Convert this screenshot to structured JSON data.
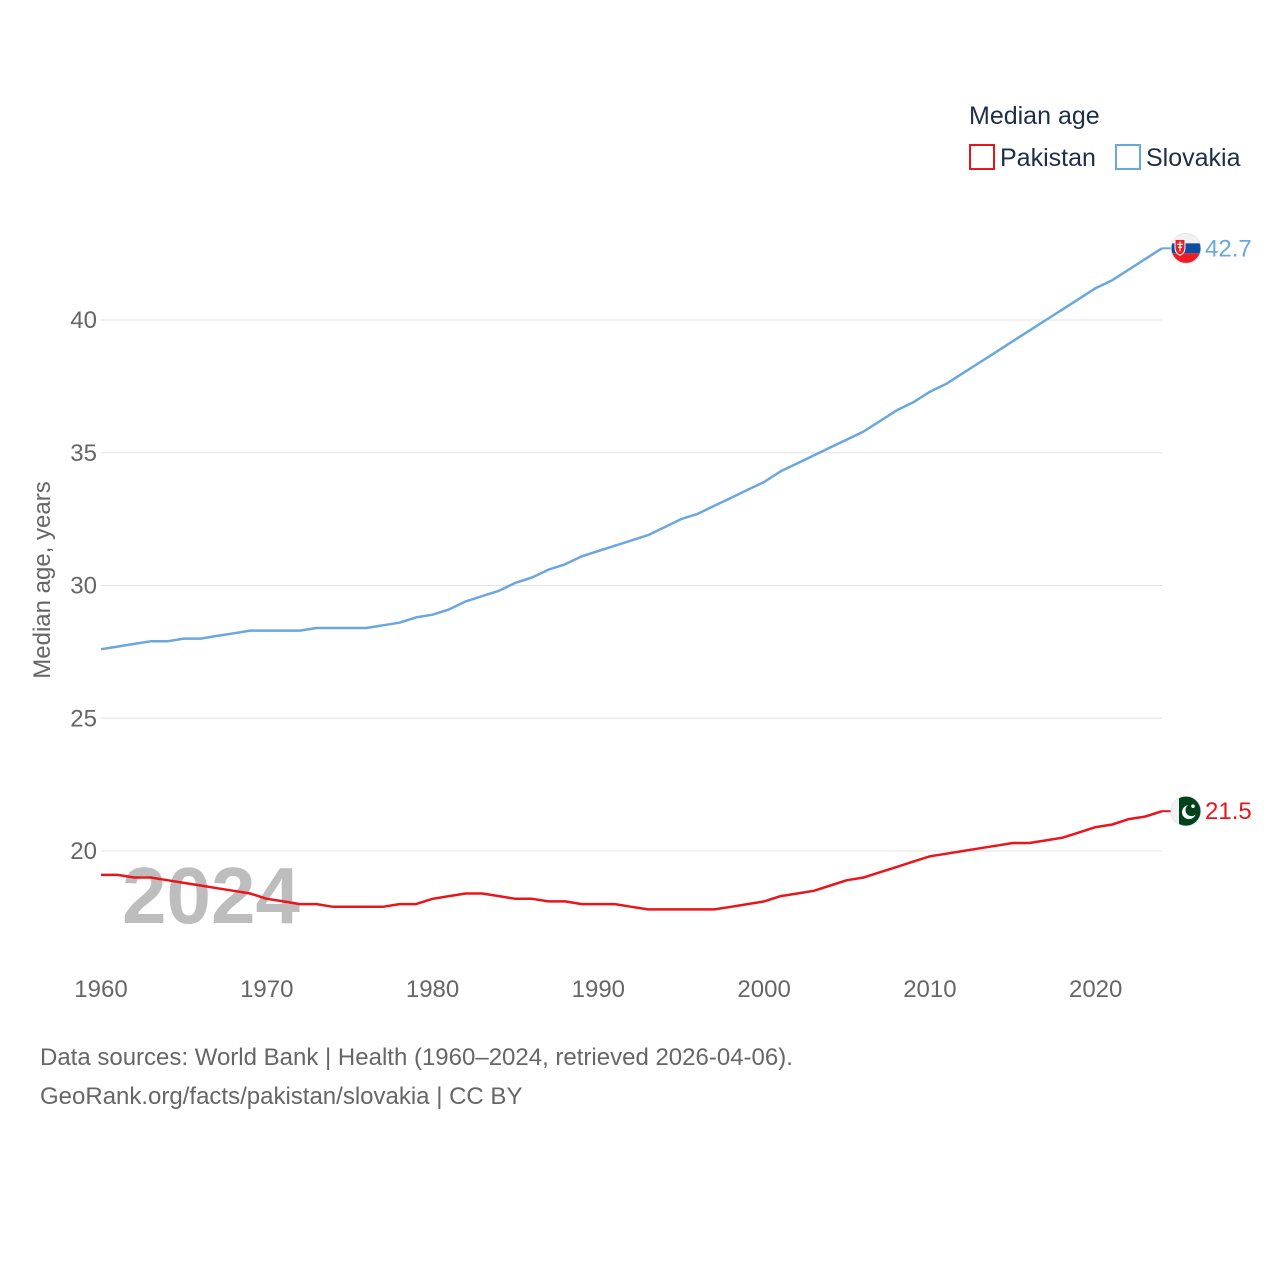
{
  "chart_data": {
    "type": "line",
    "legend_title": "Median age",
    "ylabel": "Median age, years",
    "xlabel": "",
    "xlim": [
      1960,
      2024
    ],
    "ylim": [
      16,
      44
    ],
    "x_ticks": [
      1960,
      1970,
      1980,
      1990,
      2000,
      2010,
      2020
    ],
    "y_ticks": [
      20,
      25,
      30,
      35,
      40
    ],
    "current_year_label": "2024",
    "legend_placement": "top-right",
    "x": [
      1960,
      1961,
      1962,
      1963,
      1964,
      1965,
      1966,
      1967,
      1968,
      1969,
      1970,
      1971,
      1972,
      1973,
      1974,
      1975,
      1976,
      1977,
      1978,
      1979,
      1980,
      1981,
      1982,
      1983,
      1984,
      1985,
      1986,
      1987,
      1988,
      1989,
      1990,
      1991,
      1992,
      1993,
      1994,
      1995,
      1996,
      1997,
      1998,
      1999,
      2000,
      2001,
      2002,
      2003,
      2004,
      2005,
      2006,
      2007,
      2008,
      2009,
      2010,
      2011,
      2012,
      2013,
      2014,
      2015,
      2016,
      2017,
      2018,
      2019,
      2020,
      2021,
      2022,
      2023,
      2024
    ],
    "series": [
      {
        "name": "Pakistan",
        "color": "#e8161b",
        "end_label": "21.5",
        "flag": "pakistan-flag",
        "values": [
          19.1,
          19.1,
          19.0,
          19.0,
          18.9,
          18.8,
          18.7,
          18.6,
          18.5,
          18.4,
          18.2,
          18.1,
          18.0,
          18.0,
          17.9,
          17.9,
          17.9,
          17.9,
          18.0,
          18.0,
          18.2,
          18.3,
          18.4,
          18.4,
          18.3,
          18.2,
          18.2,
          18.1,
          18.1,
          18.0,
          18.0,
          18.0,
          17.9,
          17.8,
          17.8,
          17.8,
          17.8,
          17.8,
          17.9,
          18.0,
          18.1,
          18.3,
          18.4,
          18.5,
          18.7,
          18.9,
          19.0,
          19.2,
          19.4,
          19.6,
          19.8,
          19.9,
          20.0,
          20.1,
          20.2,
          20.3,
          20.3,
          20.4,
          20.5,
          20.7,
          20.9,
          21.0,
          21.2,
          21.3,
          21.5
        ]
      },
      {
        "name": "Slovakia",
        "color": "#6aa7df",
        "end_label": "42.7",
        "flag": "slovakia-flag",
        "values": [
          27.6,
          27.7,
          27.8,
          27.9,
          27.9,
          28.0,
          28.0,
          28.1,
          28.2,
          28.3,
          28.3,
          28.3,
          28.3,
          28.4,
          28.4,
          28.4,
          28.4,
          28.5,
          28.6,
          28.8,
          28.9,
          29.1,
          29.4,
          29.6,
          29.8,
          30.1,
          30.3,
          30.6,
          30.8,
          31.1,
          31.3,
          31.5,
          31.7,
          31.9,
          32.2,
          32.5,
          32.7,
          33.0,
          33.3,
          33.6,
          33.9,
          34.3,
          34.6,
          34.9,
          35.2,
          35.5,
          35.8,
          36.2,
          36.6,
          36.9,
          37.3,
          37.6,
          38.0,
          38.4,
          38.8,
          39.2,
          39.6,
          40.0,
          40.4,
          40.8,
          41.2,
          41.5,
          41.9,
          42.3,
          42.7
        ]
      }
    ]
  },
  "footer": {
    "line1": "Data sources: World Bank | Health (1960–2024, retrieved 2026-04-06).",
    "line2": "GeoRank.org/facts/pakistan/slovakia | CC BY"
  }
}
